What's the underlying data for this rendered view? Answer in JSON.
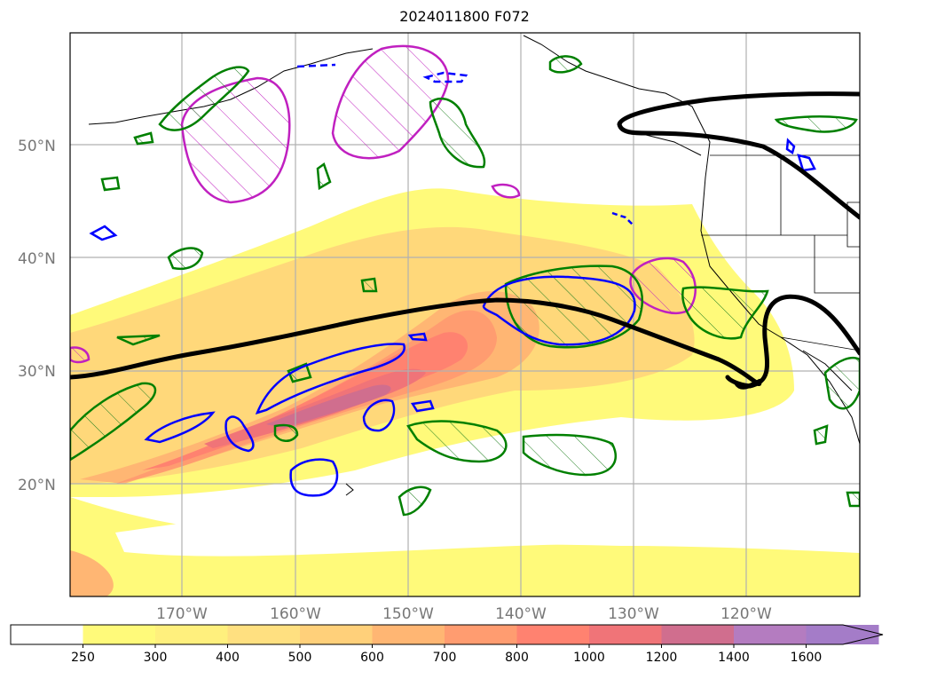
{
  "title": "2024011800 F072",
  "lat_labels": [
    "50°N",
    "40°N",
    "30°N",
    "20°N"
  ],
  "lon_labels": [
    "170°W",
    "160°W",
    "150°W",
    "140°W",
    "130°W",
    "120°W"
  ],
  "colorbar": {
    "ticks": [
      "250",
      "300",
      "400",
      "500",
      "600",
      "700",
      "800",
      "1000",
      "1200",
      "1400",
      "1600"
    ],
    "colors": [
      "#ffffff",
      "#fffa7a",
      "#fff07d",
      "#ffe080",
      "#ffd07a",
      "#ffb673",
      "#ff9c70",
      "#ff8270",
      "#f07478",
      "#d06e8e",
      "#b47cc0",
      "#a47cc8"
    ],
    "extend": "max"
  },
  "layers": {
    "ivt_shading": "filled contours 250-1600+",
    "black_contour": "thick black line",
    "magenta_contour": "magenta hatched",
    "green_contour": "green hatched",
    "blue_contour": "blue"
  }
}
